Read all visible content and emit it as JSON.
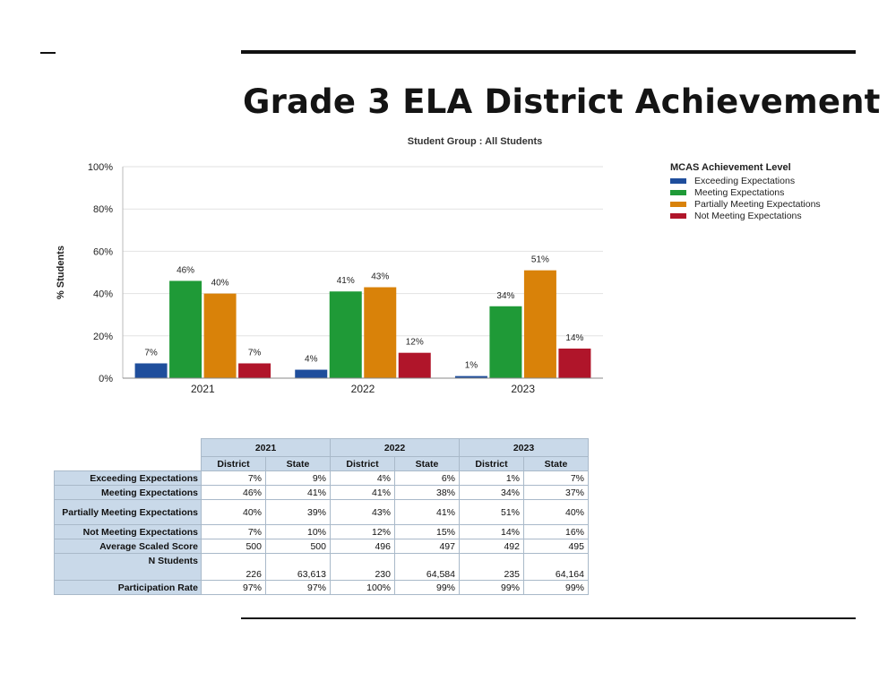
{
  "slide": {
    "title": "Grade 3 ELA District Achievement"
  },
  "chart_data": {
    "type": "bar",
    "title": "Student Group : All Students",
    "ylabel": "% Students",
    "xlabel": "",
    "ylim": [
      0,
      100
    ],
    "yticks": [
      "0%",
      "20%",
      "40%",
      "60%",
      "80%",
      "100%"
    ],
    "categories": [
      "2021",
      "2022",
      "2023"
    ],
    "legend_title": "MCAS Achievement Level",
    "legend_position": "right",
    "grid": true,
    "series": [
      {
        "name": "Exceeding Expectations",
        "color": "#1f4e9c",
        "values": [
          7,
          4,
          1
        ]
      },
      {
        "name": "Meeting Expectations",
        "color": "#1f9a37",
        "values": [
          46,
          41,
          34
        ]
      },
      {
        "name": "Partially Meeting Expectations",
        "color": "#d98209",
        "values": [
          40,
          43,
          51
        ]
      },
      {
        "name": "Not Meeting Expectations",
        "color": "#b0152a",
        "values": [
          7,
          12,
          14
        ]
      }
    ]
  },
  "table": {
    "years": [
      "2021",
      "2022",
      "2023"
    ],
    "subheaders": [
      "District",
      "State"
    ],
    "rows": [
      {
        "label": "Exceeding Expectations",
        "values": [
          "7%",
          "9%",
          "4%",
          "6%",
          "1%",
          "7%"
        ]
      },
      {
        "label": "Meeting Expectations",
        "values": [
          "46%",
          "41%",
          "41%",
          "38%",
          "34%",
          "37%"
        ]
      },
      {
        "label": "Partially Meeting Expectations",
        "values": [
          "40%",
          "39%",
          "43%",
          "41%",
          "51%",
          "40%"
        ]
      },
      {
        "label": "Not Meeting Expectations",
        "values": [
          "7%",
          "10%",
          "12%",
          "15%",
          "14%",
          "16%"
        ]
      },
      {
        "label": "Average Scaled Score",
        "values": [
          "500",
          "500",
          "496",
          "497",
          "492",
          "495"
        ]
      },
      {
        "label": "N Students",
        "values": [
          "226",
          "63,613",
          "230",
          "64,584",
          "235",
          "64,164"
        ]
      },
      {
        "label": "Participation Rate",
        "values": [
          "97%",
          "97%",
          "100%",
          "99%",
          "99%",
          "99%"
        ]
      }
    ]
  }
}
